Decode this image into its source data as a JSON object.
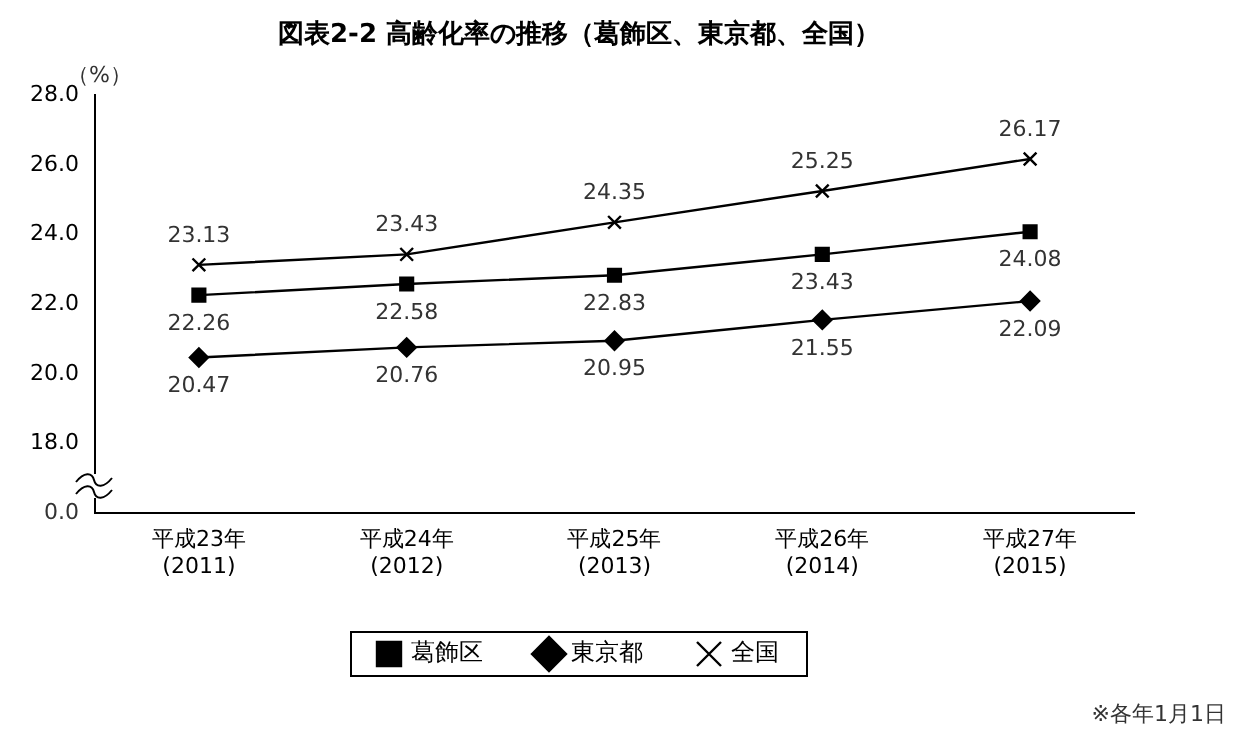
{
  "chart_data": {
    "type": "line",
    "title": "図表2-2 高齢化率の推移（葛飾区、東京都、全国）",
    "ylabel": "（%）",
    "categories": [
      "平成23年\n(2011)",
      "平成24年\n(2012)",
      "平成25年\n(2013)",
      "平成26年\n(2014)",
      "平成27年\n(2015)"
    ],
    "series": [
      {
        "name": "葛飾区",
        "color": "#000000",
        "marker": "square",
        "values": [
          22.26,
          22.58,
          22.83,
          23.43,
          24.08
        ]
      },
      {
        "name": "東京都",
        "color": "#000000",
        "marker": "diamond",
        "values": [
          20.47,
          20.76,
          20.95,
          21.55,
          22.09
        ]
      },
      {
        "name": "全国",
        "color": "#000000",
        "marker": "cross",
        "values": [
          23.13,
          23.43,
          24.35,
          25.25,
          26.17
        ]
      }
    ],
    "ylim": [
      16,
      28
    ],
    "yticks": [
      {
        "value": 18,
        "label": "18.0"
      },
      {
        "value": 20,
        "label": "20.0"
      },
      {
        "value": 22,
        "label": "22.0"
      },
      {
        "value": 24,
        "label": "24.0"
      },
      {
        "value": 26,
        "label": "26.0"
      },
      {
        "value": 28,
        "label": "28.0"
      }
    ],
    "data_labels": true,
    "legend": "bottom",
    "grid": false,
    "annotations": [
      "0.0",
      "※各年1月1日"
    ]
  }
}
